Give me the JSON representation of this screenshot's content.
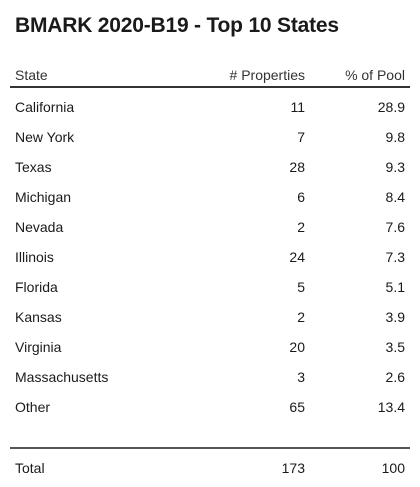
{
  "title": "BMARK 2020-B19 - Top 10 States",
  "table": {
    "headers": {
      "state": "State",
      "properties": "# Properties",
      "pct": "% of Pool"
    },
    "rows": [
      {
        "state": "California",
        "properties": "11",
        "pct": "28.9"
      },
      {
        "state": "New York",
        "properties": "7",
        "pct": "9.8"
      },
      {
        "state": "Texas",
        "properties": "28",
        "pct": "9.3"
      },
      {
        "state": "Michigan",
        "properties": "6",
        "pct": "8.4"
      },
      {
        "state": "Nevada",
        "properties": "2",
        "pct": "7.6"
      },
      {
        "state": "Illinois",
        "properties": "24",
        "pct": "7.3"
      },
      {
        "state": "Florida",
        "properties": "5",
        "pct": "5.1"
      },
      {
        "state": "Kansas",
        "properties": "2",
        "pct": "3.9"
      },
      {
        "state": "Virginia",
        "properties": "20",
        "pct": "3.5"
      },
      {
        "state": "Massachusetts",
        "properties": "3",
        "pct": "2.6"
      },
      {
        "state": "Other",
        "properties": "65",
        "pct": "13.4"
      }
    ],
    "total": {
      "label": "Total",
      "properties": "173",
      "pct": "100"
    }
  }
}
